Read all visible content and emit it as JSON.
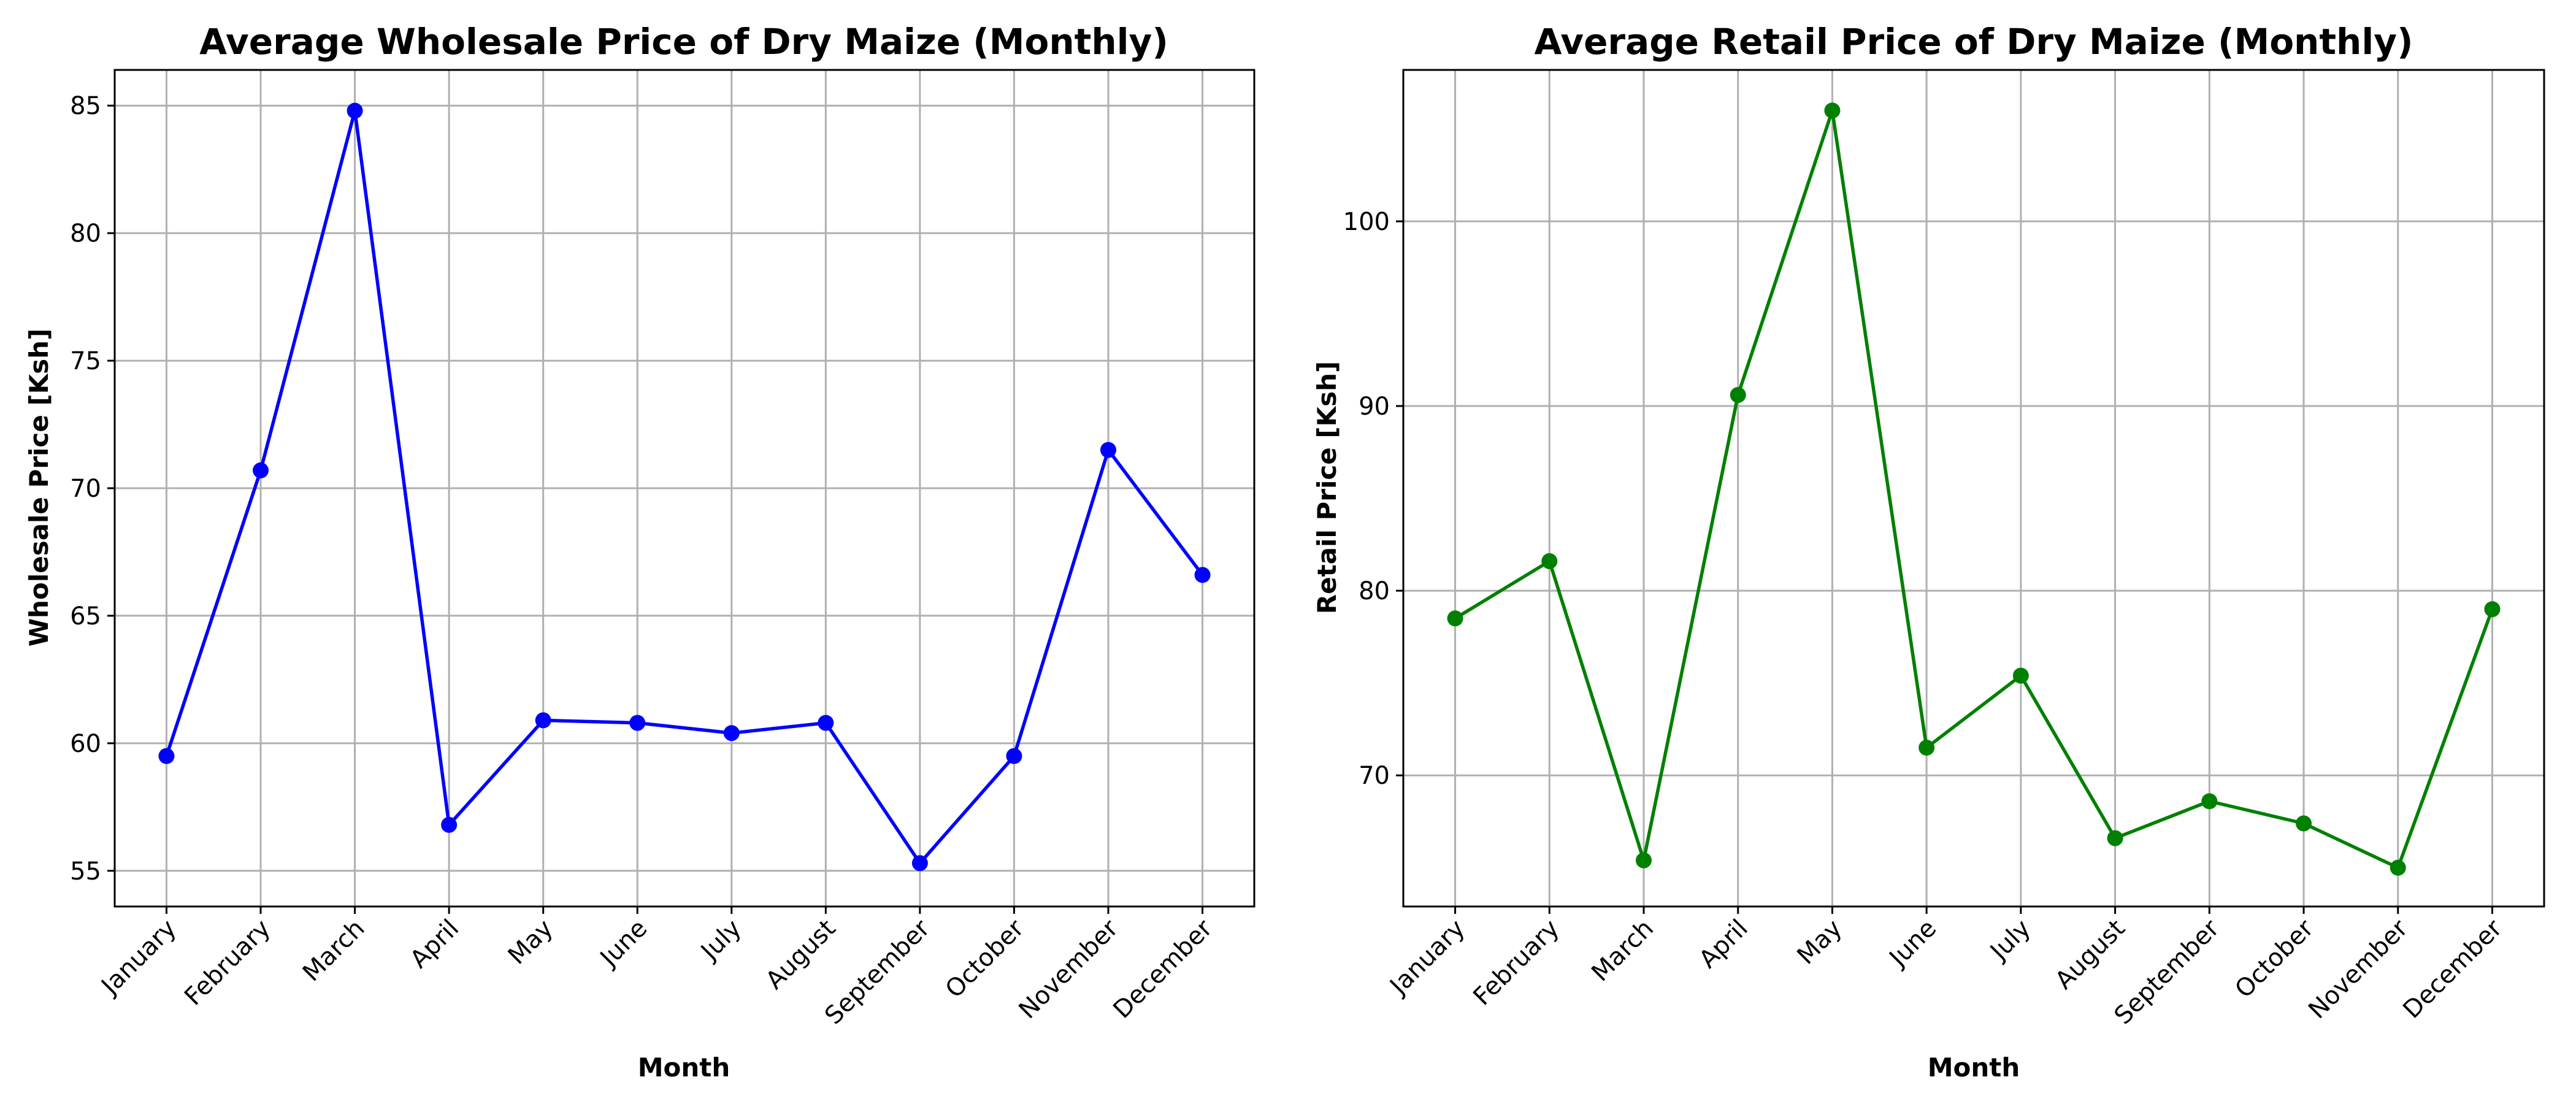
{
  "chart_data": [
    {
      "type": "line",
      "title": "Average Wholesale Price of Dry Maize (Monthly)",
      "xlabel": "Month",
      "ylabel": "Wholesale Price [Ksh]",
      "categories": [
        "January",
        "February",
        "March",
        "April",
        "May",
        "June",
        "July",
        "August",
        "September",
        "October",
        "November",
        "December"
      ],
      "series": [
        {
          "values": [
            59.5,
            70.7,
            84.8,
            56.8,
            60.9,
            60.8,
            60.4,
            60.8,
            55.3,
            59.5,
            71.5,
            66.6
          ],
          "color": "#0000ff"
        }
      ],
      "ylim": [
        53.6,
        86.4
      ],
      "yticks": [
        55,
        60,
        65,
        70,
        75,
        80,
        85
      ],
      "grid": true
    },
    {
      "type": "line",
      "title": "Average Retail Price of Dry Maize (Monthly)",
      "xlabel": "Month",
      "ylabel": "Retail Price [Ksh]",
      "categories": [
        "January",
        "February",
        "March",
        "April",
        "May",
        "June",
        "July",
        "August",
        "September",
        "October",
        "November",
        "December"
      ],
      "series": [
        {
          "values": [
            78.5,
            81.6,
            65.4,
            90.6,
            106.0,
            71.5,
            75.4,
            66.6,
            68.6,
            67.4,
            65.0,
            79.0
          ],
          "color": "#008000"
        }
      ],
      "ylim": [
        62.9,
        108.2
      ],
      "yticks": [
        70,
        80,
        90,
        100
      ],
      "grid": true
    }
  ]
}
